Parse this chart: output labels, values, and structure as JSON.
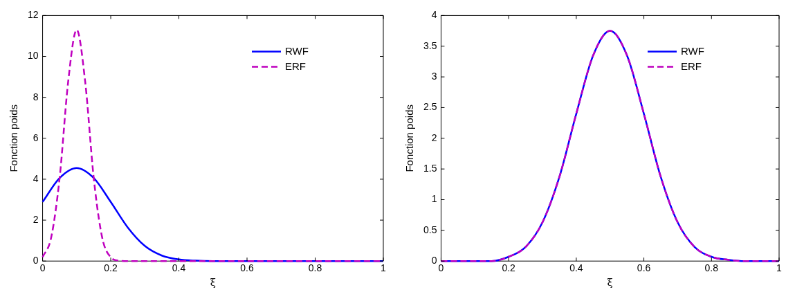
{
  "chart_data": [
    {
      "type": "line",
      "xlabel": "ξ",
      "ylabel": "Fonction poids",
      "xlim": [
        0,
        1
      ],
      "ylim": [
        0,
        12
      ],
      "xticks": [
        0,
        0.2,
        0.4,
        0.6,
        0.8,
        1
      ],
      "yticks": [
        0,
        2,
        4,
        6,
        8,
        10,
        12
      ],
      "legend": "top right",
      "series": [
        {
          "name": "RWF",
          "color": "#0000ff",
          "line_style": "solid",
          "x": [
            0,
            0.05,
            0.1,
            0.15,
            0.2,
            0.25,
            0.3,
            0.35,
            0.4,
            0.45,
            0.5,
            0.6,
            0.8,
            1
          ],
          "values": [
            2.89,
            4.06,
            4.55,
            4.06,
            2.89,
            1.64,
            0.74,
            0.27,
            0.08,
            0.02,
            0,
            0,
            0,
            0
          ]
        },
        {
          "name": "ERF",
          "color": "#bf00bf",
          "line_style": "dashed",
          "x": [
            0,
            0.025,
            0.05,
            0.075,
            0.1,
            0.125,
            0.15,
            0.175,
            0.2,
            0.225,
            0.25,
            0.4,
            0.6,
            0.8,
            1
          ],
          "values": [
            0.19,
            1.14,
            4.07,
            8.76,
            11.3,
            8.76,
            4.07,
            1.14,
            0.19,
            0.02,
            0,
            0,
            0,
            0,
            0
          ]
        }
      ]
    },
    {
      "type": "line",
      "xlabel": "ξ",
      "ylabel": "Fonction poids",
      "xlim": [
        0,
        1
      ],
      "ylim": [
        0,
        4
      ],
      "xticks": [
        0,
        0.2,
        0.4,
        0.6,
        0.8,
        1
      ],
      "yticks": [
        0,
        0.5,
        1,
        1.5,
        2,
        2.5,
        3,
        3.5,
        4
      ],
      "legend": "top right",
      "series": [
        {
          "name": "RWF",
          "color": "#0000ff",
          "line_style": "solid",
          "x": [
            0,
            0.1,
            0.15,
            0.2,
            0.25,
            0.3,
            0.35,
            0.4,
            0.45,
            0.5,
            0.55,
            0.6,
            0.65,
            0.7,
            0.75,
            0.8,
            0.85,
            0.9,
            1
          ],
          "values": [
            0,
            0,
            0,
            0.07,
            0.23,
            0.63,
            1.37,
            2.4,
            3.35,
            3.75,
            3.35,
            2.4,
            1.37,
            0.63,
            0.23,
            0.07,
            0.02,
            0,
            0
          ]
        },
        {
          "name": "ERF",
          "color": "#bf00bf",
          "line_style": "dashed",
          "x": [
            0,
            0.1,
            0.15,
            0.2,
            0.25,
            0.3,
            0.35,
            0.4,
            0.45,
            0.5,
            0.55,
            0.6,
            0.65,
            0.7,
            0.75,
            0.8,
            0.85,
            0.9,
            1
          ],
          "values": [
            0,
            0,
            0,
            0.07,
            0.23,
            0.63,
            1.37,
            2.4,
            3.35,
            3.75,
            3.35,
            2.4,
            1.37,
            0.63,
            0.23,
            0.07,
            0.02,
            0,
            0
          ]
        }
      ]
    }
  ]
}
